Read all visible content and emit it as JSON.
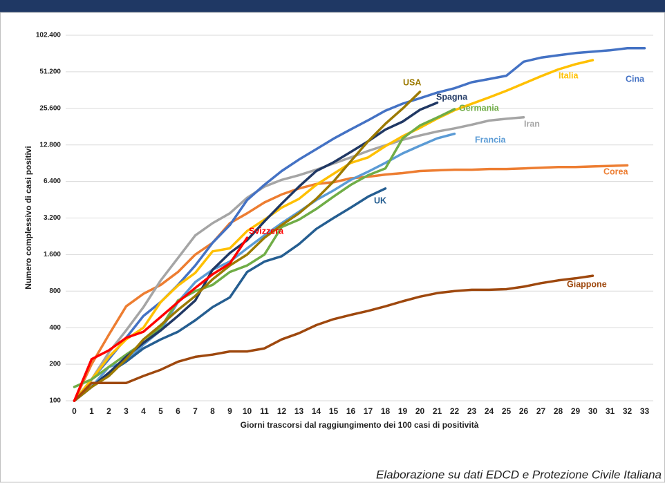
{
  "chart_data": {
    "type": "line",
    "y_label": "Numero complessivo di casi positivi",
    "x_label": "Giorni trascorsi dal raggiungimento dei 100 casi di positività",
    "source": "Elaborazione su dati EDCD e Protezione Civile Italiana",
    "x": [
      0,
      1,
      2,
      3,
      4,
      5,
      6,
      7,
      8,
      9,
      10,
      11,
      12,
      13,
      14,
      15,
      16,
      17,
      18,
      19,
      20,
      21,
      22,
      23,
      24,
      25,
      26,
      27,
      28,
      29,
      30,
      31,
      32,
      33
    ],
    "xlim": [
      -0.5,
      33.5
    ],
    "xticks": [
      0,
      1,
      2,
      3,
      4,
      5,
      6,
      7,
      8,
      9,
      10,
      11,
      12,
      13,
      14,
      15,
      16,
      17,
      18,
      19,
      20,
      21,
      22,
      23,
      24,
      25,
      26,
      27,
      28,
      29,
      30,
      31,
      32,
      33
    ],
    "ylim": [
      100,
      102400
    ],
    "ylog": true,
    "grid": true,
    "yticks": [
      100,
      200,
      400,
      800,
      {
        "value": 1600,
        "label": "1.600"
      },
      {
        "value": 3200,
        "label": "3.200"
      },
      {
        "value": 6400,
        "label": "6.400"
      },
      {
        "value": 12800,
        "label": "12.800"
      },
      {
        "value": 25600,
        "label": "25.600"
      },
      {
        "value": 51200,
        "label": "51.200"
      },
      {
        "value": 102400,
        "label": "102.400"
      }
    ],
    "series": [
      {
        "name": "Corea",
        "color": "#ed7d31",
        "values": [
          100,
          200,
          350,
          600,
          760,
          900,
          1150,
          1600,
          2000,
          2900,
          3500,
          4300,
          5000,
          5600,
          6100,
          6300,
          6800,
          7000,
          7300,
          7500,
          7800,
          7900,
          8000,
          8000,
          8100,
          8100,
          8200,
          8300,
          8400,
          8400,
          8500,
          8600,
          8700,
          null
        ]
      },
      {
        "name": "Iran",
        "color": "#a5a5a5",
        "values": [
          100,
          150,
          250,
          380,
          590,
          980,
          1500,
          2300,
          2900,
          3500,
          4700,
          5800,
          6600,
          7200,
          8000,
          9000,
          10100,
          11400,
          12700,
          14100,
          15300,
          16500,
          17500,
          18800,
          20300,
          21000,
          21600,
          null,
          null,
          null,
          null,
          null,
          null,
          null
        ]
      },
      {
        "name": "Cina",
        "color": "#4472c4",
        "values": [
          100,
          150,
          220,
          330,
          500,
          650,
          900,
          1300,
          2000,
          2800,
          4500,
          6000,
          7800,
          9700,
          11800,
          14400,
          17200,
          20400,
          24500,
          28000,
          31000,
          34500,
          37500,
          42000,
          44600,
          47500,
          62000,
          67000,
          70000,
          73000,
          75000,
          77000,
          80000,
          80000
        ]
      },
      {
        "name": "Italia",
        "color": "#ffc000",
        "values": [
          100,
          150,
          230,
          320,
          400,
          650,
          890,
          1130,
          1700,
          1800,
          2500,
          3100,
          3900,
          4600,
          6000,
          7400,
          9100,
          10100,
          12500,
          15100,
          17700,
          21100,
          24700,
          27900,
          31500,
          35700,
          41000,
          47000,
          53500,
          59100,
          63900,
          null,
          null,
          null
        ]
      },
      {
        "name": "Francia",
        "color": "#5b9bd5",
        "values": [
          100,
          130,
          190,
          210,
          290,
          380,
          650,
          950,
          1200,
          1400,
          1800,
          2300,
          2900,
          3600,
          4500,
          5400,
          6600,
          7700,
          9100,
          10900,
          12600,
          14500,
          15800,
          null,
          null,
          null,
          null,
          null,
          null,
          null,
          null,
          null,
          null,
          null
        ]
      },
      {
        "name": "Germania",
        "color": "#70ad47",
        "values": [
          130,
          150,
          190,
          240,
          300,
          400,
          670,
          800,
          900,
          1150,
          1300,
          1600,
          2700,
          3100,
          3800,
          4800,
          6000,
          7200,
          8200,
          14500,
          18500,
          21500,
          25200,
          null,
          null,
          null,
          null,
          null,
          null,
          null,
          null,
          null,
          null,
          null
        ]
      },
      {
        "name": "UK",
        "color": "#255e91",
        "values": [
          100,
          130,
          170,
          210,
          270,
          320,
          370,
          460,
          590,
          710,
          1150,
          1400,
          1550,
          1950,
          2600,
          3200,
          3900,
          4800,
          5600,
          null,
          null,
          null,
          null,
          null,
          null,
          null,
          null,
          null,
          null,
          null,
          null,
          null,
          null,
          null
        ]
      },
      {
        "name": "Spagna",
        "color": "#203864",
        "values": [
          100,
          130,
          170,
          230,
          300,
          380,
          500,
          670,
          1200,
          1650,
          2100,
          3000,
          4200,
          5800,
          7800,
          9200,
          11200,
          13700,
          17100,
          19900,
          24900,
          28500,
          null,
          null,
          null,
          null,
          null,
          null,
          null,
          null,
          null,
          null,
          null,
          null
        ]
      },
      {
        "name": "USA",
        "color": "#9c7a00",
        "values": [
          100,
          130,
          160,
          220,
          320,
          420,
          560,
          730,
          1000,
          1300,
          1600,
          2200,
          2800,
          3500,
          4600,
          6400,
          9400,
          13700,
          19100,
          25500,
          35000,
          null,
          null,
          null,
          null,
          null,
          null,
          null,
          null,
          null,
          null,
          null,
          null,
          null
        ]
      },
      {
        "name": "Giappone",
        "color": "#9e480e",
        "values": [
          100,
          140,
          140,
          140,
          160,
          180,
          210,
          230,
          240,
          255,
          255,
          270,
          320,
          360,
          420,
          470,
          510,
          550,
          600,
          660,
          720,
          770,
          800,
          820,
          820,
          830,
          870,
          930,
          980,
          1020,
          1070,
          null,
          null,
          null
        ]
      },
      {
        "name": "Svizzera",
        "color": "#ff0000",
        "values": [
          100,
          220,
          260,
          330,
          370,
          490,
          650,
          850,
          1100,
          1350,
          2200,
          null,
          null,
          null,
          null,
          null,
          null,
          null,
          null,
          null,
          null,
          null,
          null,
          null,
          null,
          null,
          null,
          null,
          null,
          null,
          null,
          null,
          null,
          null
        ]
      }
    ]
  }
}
